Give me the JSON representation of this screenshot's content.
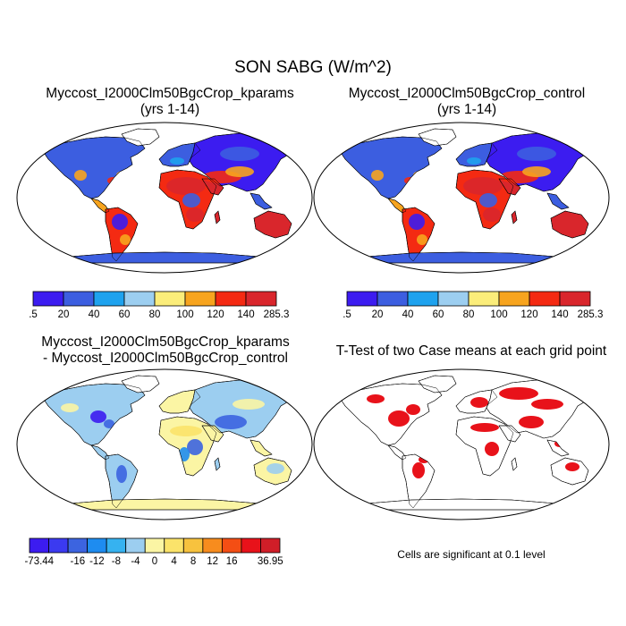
{
  "title": "SON SABG (W/m^2)",
  "note": "Cells are significant at 0.1 level",
  "panels": [
    {
      "title_line1": "Myccost_I2000Clm50BgcCrop_kparams",
      "title_line2": "(yrs 1-14)"
    },
    {
      "title_line1": "Myccost_I2000Clm50BgcCrop_control",
      "title_line2": "(yrs 1-14)"
    },
    {
      "title_line1": "Myccost_I2000Clm50BgcCrop_kparams",
      "title_line2": "- Myccost_I2000Clm50BgcCrop_control"
    },
    {
      "title_line1": "T-Test of two Case means at each grid point",
      "title_line2": ""
    }
  ],
  "chart_data": [
    {
      "type": "heatmap",
      "title": "Myccost_I2000Clm50BgcCrop_kparams (yrs 1-14)",
      "colorbar": {
        "labels": [
          ".5",
          "20",
          "40",
          "60",
          "80",
          "100",
          "120",
          "140",
          "285.3"
        ],
        "colors": [
          "#3c1cf0",
          "#3c5ee0",
          "#1ea2ee",
          "#9ccef0",
          "#fbed7a",
          "#f7a41e",
          "#f42a12",
          "#d9262c"
        ]
      }
    },
    {
      "type": "heatmap",
      "title": "Myccost_I2000Clm50BgcCrop_control (yrs 1-14)",
      "colorbar": {
        "labels": [
          ".5",
          "20",
          "40",
          "60",
          "80",
          "100",
          "120",
          "140",
          "285.3"
        ],
        "colors": [
          "#3c1cf0",
          "#3c5ee0",
          "#1ea2ee",
          "#9ccef0",
          "#fbed7a",
          "#f7a41e",
          "#f42a12",
          "#d9262c"
        ]
      }
    },
    {
      "type": "heatmap",
      "title": "Myccost_I2000Clm50BgcCrop_kparams - Myccost_I2000Clm50BgcCrop_control",
      "colorbar": {
        "labels": [
          "-73.44",
          "",
          "-16",
          "-12",
          "-8",
          "-4",
          "0",
          "4",
          "8",
          "12",
          "16",
          "",
          "36.95"
        ],
        "colors": [
          "#3c1cf0",
          "#3b3af0",
          "#3c64e0",
          "#1e8cf0",
          "#36b2f0",
          "#9ccef0",
          "#fbf5a4",
          "#fbe36a",
          "#f7c23e",
          "#f78c1e",
          "#f44e14",
          "#e8121a",
          "#d01e28"
        ]
      }
    },
    {
      "type": "heatmap",
      "title": "T-Test of two Case means at each grid point",
      "colorbar": null
    }
  ],
  "colors": {
    "ocean": "#ffffff",
    "outline": "#000000",
    "significant": "#e8121a"
  }
}
